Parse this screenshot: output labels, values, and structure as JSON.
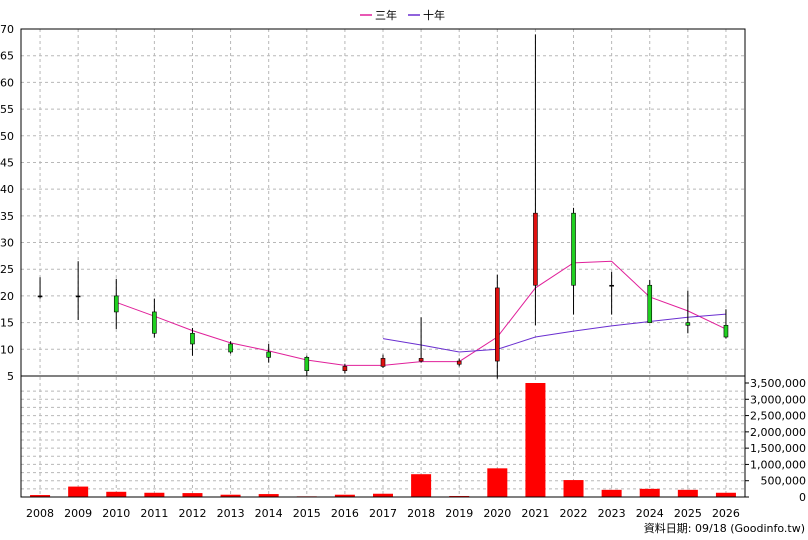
{
  "chart_data": {
    "type": "candlestick",
    "legend": {
      "position": "top-center",
      "items": [
        {
          "name": "三年",
          "color": "#e0209a"
        },
        {
          "name": "十年",
          "color": "#6a2fd0"
        }
      ]
    },
    "source_note": "資料日期: 09/18  (Goodinfo.tw)",
    "x": [
      "2008",
      "2009",
      "2010",
      "2011",
      "2012",
      "2013",
      "2014",
      "2015",
      "2016",
      "2017",
      "2018",
      "2019",
      "2020",
      "2021",
      "2022",
      "2023",
      "2024",
      "2025",
      "2026"
    ],
    "price_axis": {
      "ylim": [
        5,
        70
      ],
      "ticks": [
        "5",
        "10",
        "15",
        "20",
        "25",
        "30",
        "35",
        "40",
        "45",
        "50",
        "55",
        "60",
        "65",
        "70"
      ]
    },
    "volume_axis": {
      "ylim": [
        0,
        3500000
      ],
      "ticks": [
        "0",
        "500,000",
        "1,000,000",
        "1,500,000",
        "2,000,000",
        "2,500,000",
        "3,000,000",
        "3,500,000"
      ]
    },
    "candles": [
      {
        "year": "2008",
        "open": 20.0,
        "close": 20.0,
        "high": 23.5,
        "low": 19.5
      },
      {
        "year": "2009",
        "open": 20.0,
        "close": 20.0,
        "high": 26.5,
        "low": 15.5
      },
      {
        "year": "2010",
        "open": 20.0,
        "close": 17.0,
        "high": 23.2,
        "low": 13.8
      },
      {
        "year": "2011",
        "open": 17.0,
        "close": 13.0,
        "high": 19.5,
        "low": 12.2
      },
      {
        "year": "2012",
        "open": 13.0,
        "close": 11.0,
        "high": 14.0,
        "low": 8.8
      },
      {
        "year": "2013",
        "open": 11.0,
        "close": 9.5,
        "high": 11.5,
        "low": 9.2
      },
      {
        "year": "2014",
        "open": 9.5,
        "close": 8.5,
        "high": 11.0,
        "low": 7.5
      },
      {
        "year": "2015",
        "open": 8.5,
        "close": 6.0,
        "high": 8.8,
        "low": 5.0
      },
      {
        "year": "2016",
        "open": 6.0,
        "close": 6.8,
        "high": 7.3,
        "low": 5.5
      },
      {
        "year": "2017",
        "open": 6.8,
        "close": 8.3,
        "high": 9.0,
        "low": 6.5
      },
      {
        "year": "2018",
        "open": 7.8,
        "close": 8.3,
        "high": 16.0,
        "low": 7.5
      },
      {
        "year": "2019",
        "open": 7.2,
        "close": 7.8,
        "high": 8.3,
        "low": 6.8
      },
      {
        "year": "2020",
        "open": 7.8,
        "close": 21.5,
        "high": 24.0,
        "low": 4.5
      },
      {
        "year": "2021",
        "open": 22.0,
        "close": 35.5,
        "high": 69.0,
        "low": 14.5
      },
      {
        "year": "2022",
        "open": 35.5,
        "close": 22.0,
        "high": 36.5,
        "low": 16.5
      },
      {
        "year": "2023",
        "open": 22.0,
        "close": 22.0,
        "high": 24.5,
        "low": 16.5
      },
      {
        "year": "2024",
        "open": 22.0,
        "close": 15.0,
        "high": 23.0,
        "low": 15.0
      },
      {
        "year": "2025",
        "open": 15.0,
        "close": 14.5,
        "high": 21.0,
        "low": 13.0
      },
      {
        "year": "2026",
        "open": 14.5,
        "close": 12.3,
        "high": 17.5,
        "low": 12.0
      }
    ],
    "up_color": "#e01010",
    "down_color": "#20d020",
    "volume": [
      60000,
      320000,
      160000,
      130000,
      120000,
      70000,
      90000,
      20000,
      70000,
      100000,
      700000,
      30000,
      880000,
      3500000,
      520000,
      220000,
      250000,
      220000,
      130000
    ],
    "volume_color": "#ff0000",
    "series": [
      {
        "name": "三年",
        "color": "#e0209a",
        "points": [
          [
            "2010",
            18.8
          ],
          [
            "2011",
            16.2
          ],
          [
            "2012",
            13.5
          ],
          [
            "2013",
            11.2
          ],
          [
            "2014",
            9.7
          ],
          [
            "2015",
            8.0
          ],
          [
            "2016",
            7.0
          ],
          [
            "2017",
            7.0
          ],
          [
            "2018",
            7.7
          ],
          [
            "2019",
            7.7
          ],
          [
            "2020",
            12.3
          ],
          [
            "2021",
            21.5
          ],
          [
            "2022",
            26.2
          ],
          [
            "2023",
            26.5
          ],
          [
            "2024",
            19.8
          ],
          [
            "2025",
            17.2
          ],
          [
            "2026",
            13.8
          ]
        ]
      },
      {
        "name": "十年",
        "color": "#6a2fd0",
        "points": [
          [
            "2017",
            12.0
          ],
          [
            "2018",
            10.8
          ],
          [
            "2019",
            9.5
          ],
          [
            "2020",
            10.0
          ],
          [
            "2021",
            12.3
          ],
          [
            "2022",
            13.4
          ],
          [
            "2023",
            14.4
          ],
          [
            "2024",
            15.2
          ],
          [
            "2025",
            16.0
          ],
          [
            "2026",
            16.6
          ]
        ]
      }
    ]
  }
}
